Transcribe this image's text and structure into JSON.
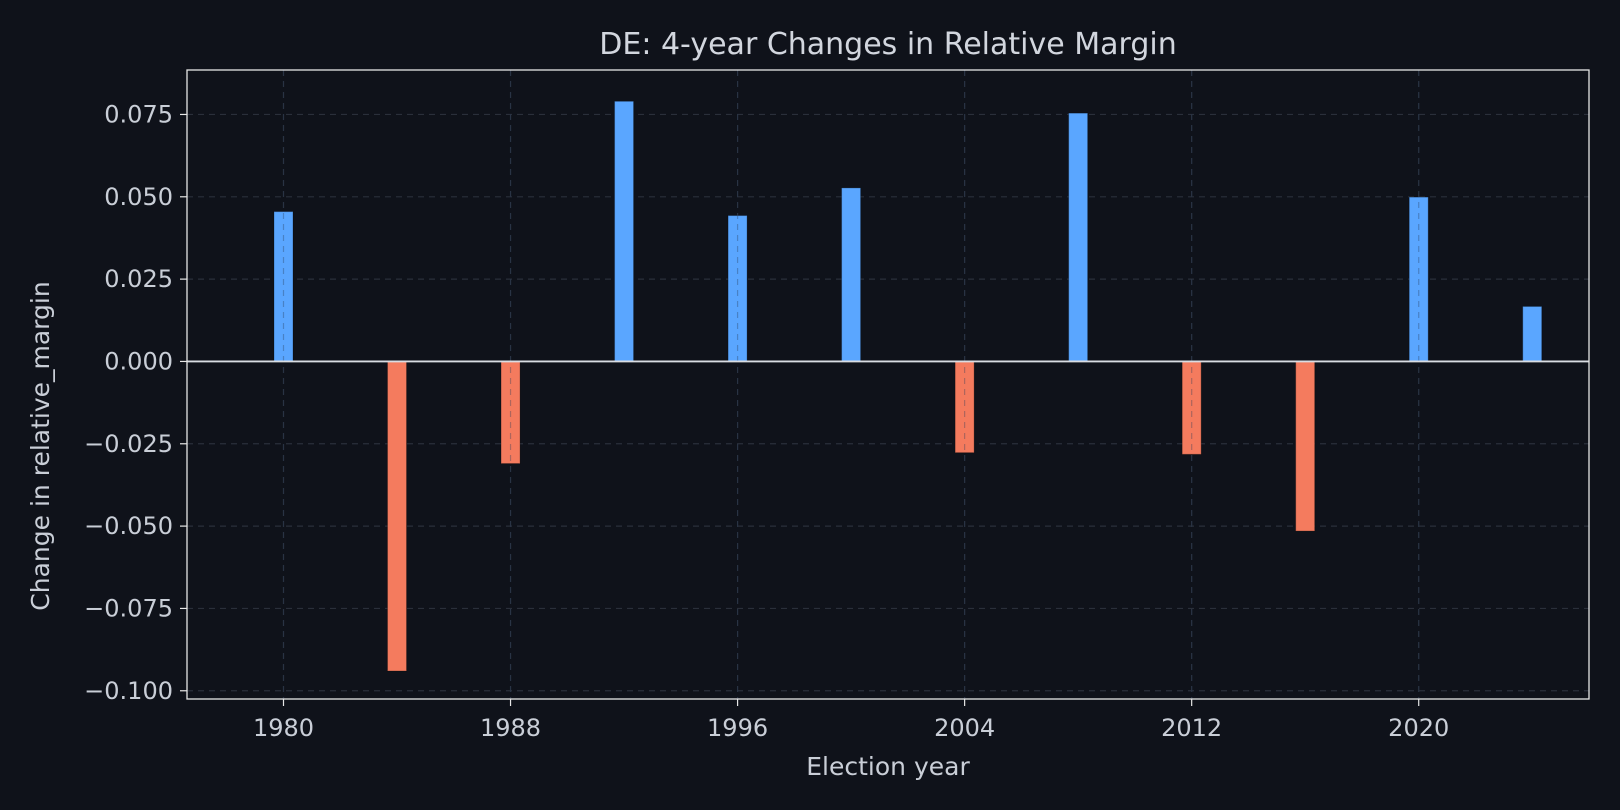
{
  "chart_data": {
    "type": "bar",
    "title": "DE: 4-year Changes in Relative Margin",
    "xlabel": "Election year",
    "ylabel": "Change in relative_margin",
    "x": [
      1980,
      1984,
      1988,
      1992,
      1996,
      2000,
      2004,
      2008,
      2012,
      2016,
      2020,
      2024
    ],
    "values": [
      0.0455,
      -0.094,
      -0.031,
      0.079,
      0.0443,
      0.0527,
      -0.0277,
      0.0754,
      -0.0282,
      -0.0515,
      0.0499,
      0.0167
    ],
    "xlim": [
      1976.6,
      2026.0
    ],
    "ylim": [
      -0.1025,
      0.0885
    ],
    "xticks": [
      1980,
      1988,
      1996,
      2004,
      2012,
      2020
    ],
    "xtick_labels": [
      "1980",
      "1988",
      "1996",
      "2004",
      "2012",
      "2020"
    ],
    "yticks": [
      0.075,
      0.05,
      0.025,
      0.0,
      -0.025,
      -0.05,
      -0.075,
      -0.1
    ],
    "ytick_labels": [
      "0.075",
      "0.050",
      "0.025",
      "0.000",
      "−0.025",
      "−0.050",
      "−0.075",
      "−0.100"
    ],
    "grid": true,
    "colors": {
      "positive": "#5aa6ff",
      "negative": "#f47b5e",
      "background": "#0f121a",
      "axes": "#e6e6e6",
      "grid": "#2a2f3a",
      "text": "#c9ced7"
    }
  }
}
